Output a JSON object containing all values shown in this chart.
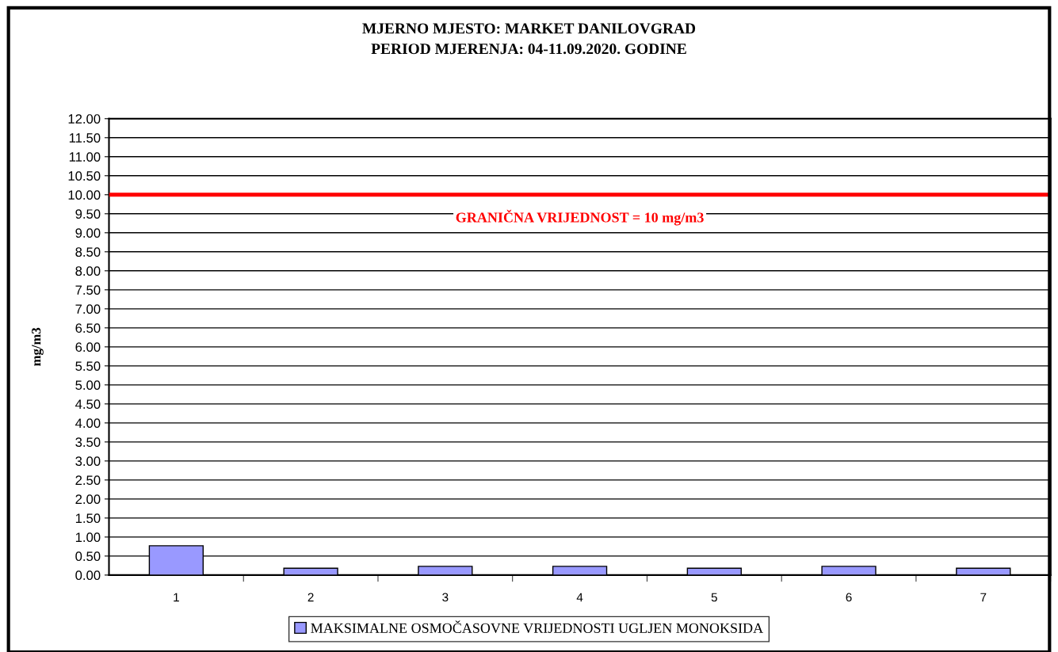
{
  "chart_data": {
    "type": "bar",
    "title": "MJERNO MJESTO: MARKET DANILOVGRAD\nPERIOD MJERENJA: 04-11.09.2020. GODINE",
    "ylabel": "mg/m3",
    "categories": [
      "1",
      "2",
      "3",
      "4",
      "5",
      "6",
      "7"
    ],
    "series": [
      {
        "name": "MAKSIMALNE OSMOČASOVNE VRIJEDNOSTI UGLJEN MONOKSIDA",
        "color": "#9999ff",
        "values": [
          0.77,
          0.18,
          0.23,
          0.23,
          0.18,
          0.23,
          0.18
        ]
      }
    ],
    "ylim": [
      0,
      12
    ],
    "yticks": [
      {
        "value": 0,
        "label": "0.00"
      },
      {
        "value": 0.5,
        "label": "0.50"
      },
      {
        "value": 1,
        "label": "1.00"
      },
      {
        "value": 1.5,
        "label": "1.50"
      },
      {
        "value": 2,
        "label": "2.00"
      },
      {
        "value": 2.5,
        "label": "2.50"
      },
      {
        "value": 3,
        "label": "3.00"
      },
      {
        "value": 3.5,
        "label": "3.50"
      },
      {
        "value": 4,
        "label": "4.00"
      },
      {
        "value": 4.5,
        "label": "4.50"
      },
      {
        "value": 5,
        "label": "5.00"
      },
      {
        "value": 5.5,
        "label": "5.50"
      },
      {
        "value": 6,
        "label": "6.00"
      },
      {
        "value": 6.5,
        "label": "6.50"
      },
      {
        "value": 7,
        "label": "7.00"
      },
      {
        "value": 7.5,
        "label": "7.50"
      },
      {
        "value": 8,
        "label": "8.00"
      },
      {
        "value": 8.5,
        "label": "8.50"
      },
      {
        "value": 9,
        "label": "9.00"
      },
      {
        "value": 9.5,
        "label": "9.50"
      },
      {
        "value": 10,
        "label": "10.00"
      },
      {
        "value": 10.5,
        "label": "10.50"
      },
      {
        "value": 11,
        "label": "11.00"
      },
      {
        "value": 11.5,
        "label": "11.50"
      },
      {
        "value": 12,
        "label": "12.00"
      }
    ],
    "ref_lines": [
      {
        "axis": "y",
        "value": 10,
        "label": "GRANIČNA VRIJEDNOST = 10 mg/m3",
        "color": "#ff0000",
        "line_style": "solid"
      }
    ],
    "grid": "y",
    "legend": "bottom"
  }
}
